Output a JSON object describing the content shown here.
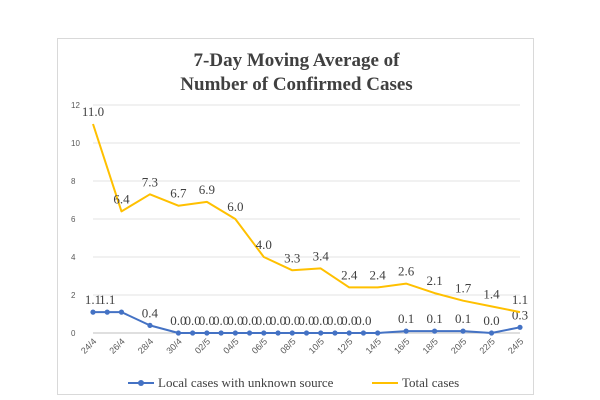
{
  "chart_data": {
    "type": "line",
    "title": "7-Day Moving Average of\nNumber of Confirmed Cases",
    "categories": [
      "24/4",
      "26/4",
      "28/4",
      "30/4",
      "02/5",
      "04/5",
      "06/5",
      "08/5",
      "10/5",
      "12/5",
      "14/5",
      "16/5",
      "18/5",
      "20/5",
      "22/5",
      "24/5"
    ],
    "ylim": [
      0,
      12
    ],
    "yticks": [
      0,
      2,
      4,
      6,
      8,
      10,
      12
    ],
    "grid": true,
    "legend_position": "bottom",
    "series": [
      {
        "name": "Local cases with unknown source",
        "color": "#4472C4",
        "marker": "circle",
        "x": [
          "24/4",
          "25/4",
          "26/4",
          "28/4",
          "30/4",
          "01/5",
          "02/5",
          "03/5",
          "04/5",
          "05/5",
          "06/5",
          "07/5",
          "08/5",
          "09/5",
          "10/5",
          "11/5",
          "12/5",
          "13/5",
          "14/5",
          "16/5",
          "18/5",
          "20/5",
          "22/5",
          "24/5"
        ],
        "values": [
          1.1,
          1.1,
          1.1,
          0.4,
          0.0,
          0.0,
          0.0,
          0.0,
          0.0,
          0.0,
          0.0,
          0.0,
          0.0,
          0.0,
          0.0,
          0.0,
          0.0,
          0.0,
          0.0,
          0.1,
          0.1,
          0.1,
          0.0,
          0.3
        ],
        "labels": [
          "1.1",
          "1.1",
          "",
          "0.4",
          "0.0",
          "0.0",
          "0.0",
          "0.0",
          "0.0",
          "0.0",
          "0.0",
          "0.0",
          "0.0",
          "0.0",
          "0.0",
          "0.0",
          "0.0",
          "0.0",
          "",
          "0.1",
          "0.1",
          "0.1",
          "0.0",
          "0.3"
        ]
      },
      {
        "name": "Total cases",
        "color": "#FFC000",
        "marker": "none",
        "x": [
          "24/4",
          "26/4",
          "28/4",
          "30/4",
          "02/5",
          "04/5",
          "06/5",
          "08/5",
          "10/5",
          "12/5",
          "14/5",
          "16/5",
          "18/5",
          "20/5",
          "22/5",
          "24/5"
        ],
        "values": [
          11.0,
          6.4,
          7.3,
          6.7,
          6.9,
          6.0,
          4.0,
          3.3,
          3.4,
          2.4,
          2.4,
          2.6,
          2.1,
          1.7,
          1.4,
          1.1
        ],
        "labels": [
          "11.0",
          "6.4",
          "7.3",
          "6.7",
          "6.9",
          "6.0",
          "4.0",
          "3.3",
          "3.4",
          "2.4",
          "2.4",
          "2.6",
          "2.1",
          "1.7",
          "1.4",
          "1.1"
        ]
      }
    ]
  }
}
